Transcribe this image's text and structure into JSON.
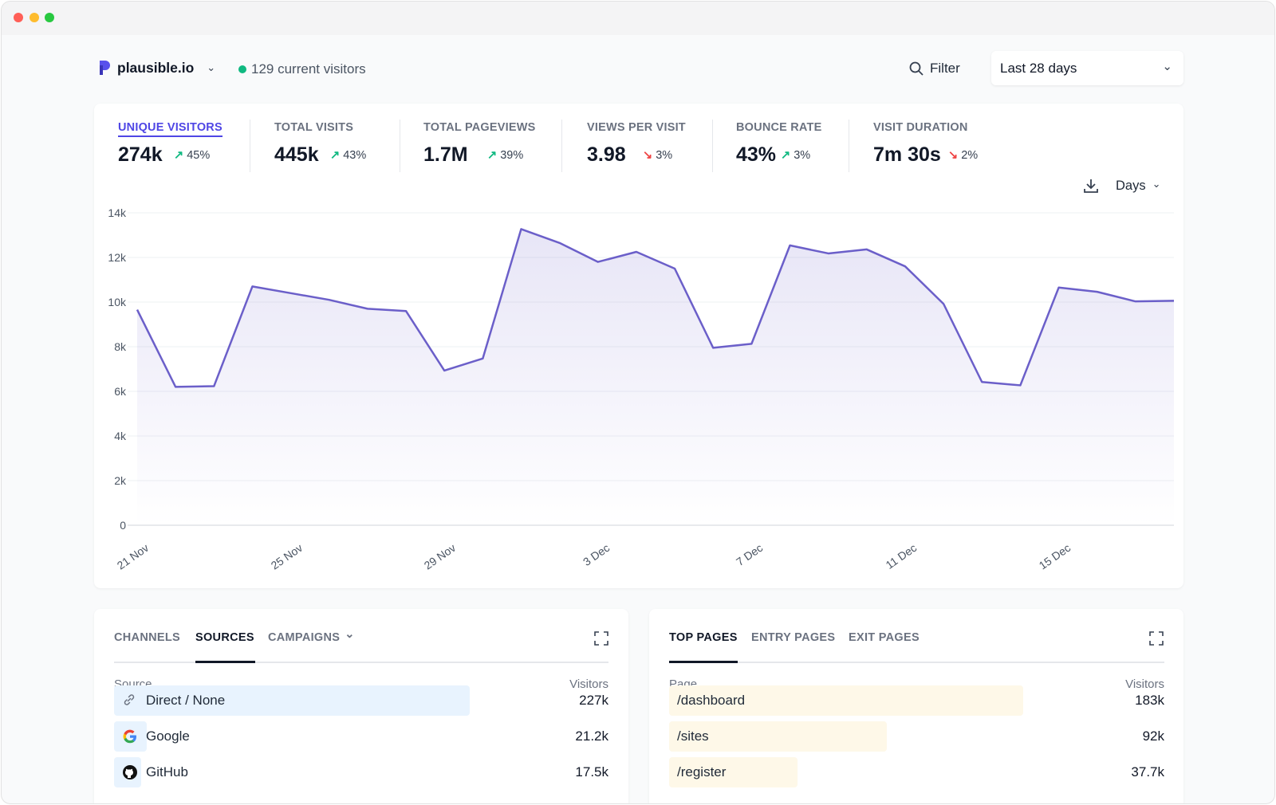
{
  "header": {
    "site_name": "plausible.io",
    "current_visitors": "129 current visitors",
    "filter_label": "Filter",
    "date_range": "Last 28 days"
  },
  "colors": {
    "accent": "#4f46e5",
    "line": "#6b5fc9",
    "live_dot": "#10b981",
    "up": "#10b981",
    "down": "#ef4444",
    "source_bar": "#e8f3fe",
    "page_bar": "#fef8e8"
  },
  "stats": [
    {
      "label": "UNIQUE VISITORS",
      "value": "274k",
      "change": "45%",
      "direction": "up",
      "active": true
    },
    {
      "label": "TOTAL VISITS",
      "value": "445k",
      "change": "43%",
      "direction": "up"
    },
    {
      "label": "TOTAL PAGEVIEWS",
      "value": "1.7M",
      "change": "39%",
      "direction": "up"
    },
    {
      "label": "VIEWS PER VISIT",
      "value": "3.98",
      "change": "3%",
      "direction": "down"
    },
    {
      "label": "BOUNCE RATE",
      "value": "43%",
      "change": "3%",
      "direction": "up"
    },
    {
      "label": "VISIT DURATION",
      "value": "7m 30s",
      "change": "2%",
      "direction": "down"
    }
  ],
  "chart_controls": {
    "interval": "Days"
  },
  "chart_data": {
    "type": "area",
    "x": [
      "21 Nov",
      "22 Nov",
      "23 Nov",
      "24 Nov",
      "25 Nov",
      "26 Nov",
      "27 Nov",
      "28 Nov",
      "29 Nov",
      "30 Nov",
      "1 Dec",
      "2 Dec",
      "3 Dec",
      "4 Dec",
      "5 Dec",
      "6 Dec",
      "7 Dec",
      "8 Dec",
      "9 Dec",
      "10 Dec",
      "11 Dec",
      "12 Dec",
      "13 Dec",
      "14 Dec",
      "15 Dec",
      "16 Dec",
      "17 Dec",
      "18 Dec"
    ],
    "values": [
      9660,
      6200,
      6230,
      10700,
      10400,
      10100,
      9700,
      9600,
      6930,
      7470,
      13270,
      12650,
      11800,
      12250,
      11500,
      7950,
      8130,
      12540,
      12180,
      12360,
      11600,
      9920,
      6420,
      6270,
      10650,
      10460,
      10030,
      10060
    ],
    "xticks": [
      "21 Nov",
      "25 Nov",
      "29 Nov",
      "3 Dec",
      "7 Dec",
      "11 Dec",
      "15 Dec"
    ],
    "yticks": [
      "0",
      "2k",
      "4k",
      "6k",
      "8k",
      "10k",
      "12k",
      "14k"
    ],
    "ylim": [
      0,
      14000
    ],
    "grid": true
  },
  "sources_panel": {
    "tabs": [
      "CHANNELS",
      "SOURCES",
      "CAMPAIGNS"
    ],
    "active_tab": "SOURCES",
    "col_source": "Source",
    "col_visitors": "Visitors",
    "rows": [
      {
        "label": "Direct / None",
        "visitors": "227k",
        "icon": "link-icon",
        "bar": 0.72
      },
      {
        "label": "Google",
        "visitors": "21.2k",
        "icon": "google-icon",
        "bar": 0.066
      },
      {
        "label": "GitHub",
        "visitors": "17.5k",
        "icon": "github-icon",
        "bar": 0.055
      }
    ]
  },
  "pages_panel": {
    "tabs": [
      "TOP PAGES",
      "ENTRY PAGES",
      "EXIT PAGES"
    ],
    "active_tab": "TOP PAGES",
    "col_page": "Page",
    "col_visitors": "Visitors",
    "rows": [
      {
        "label": "/dashboard",
        "visitors": "183k",
        "bar": 0.716
      },
      {
        "label": "/sites",
        "visitors": "92k",
        "bar": 0.44
      },
      {
        "label": "/register",
        "visitors": "37.7k",
        "bar": 0.26
      }
    ]
  }
}
